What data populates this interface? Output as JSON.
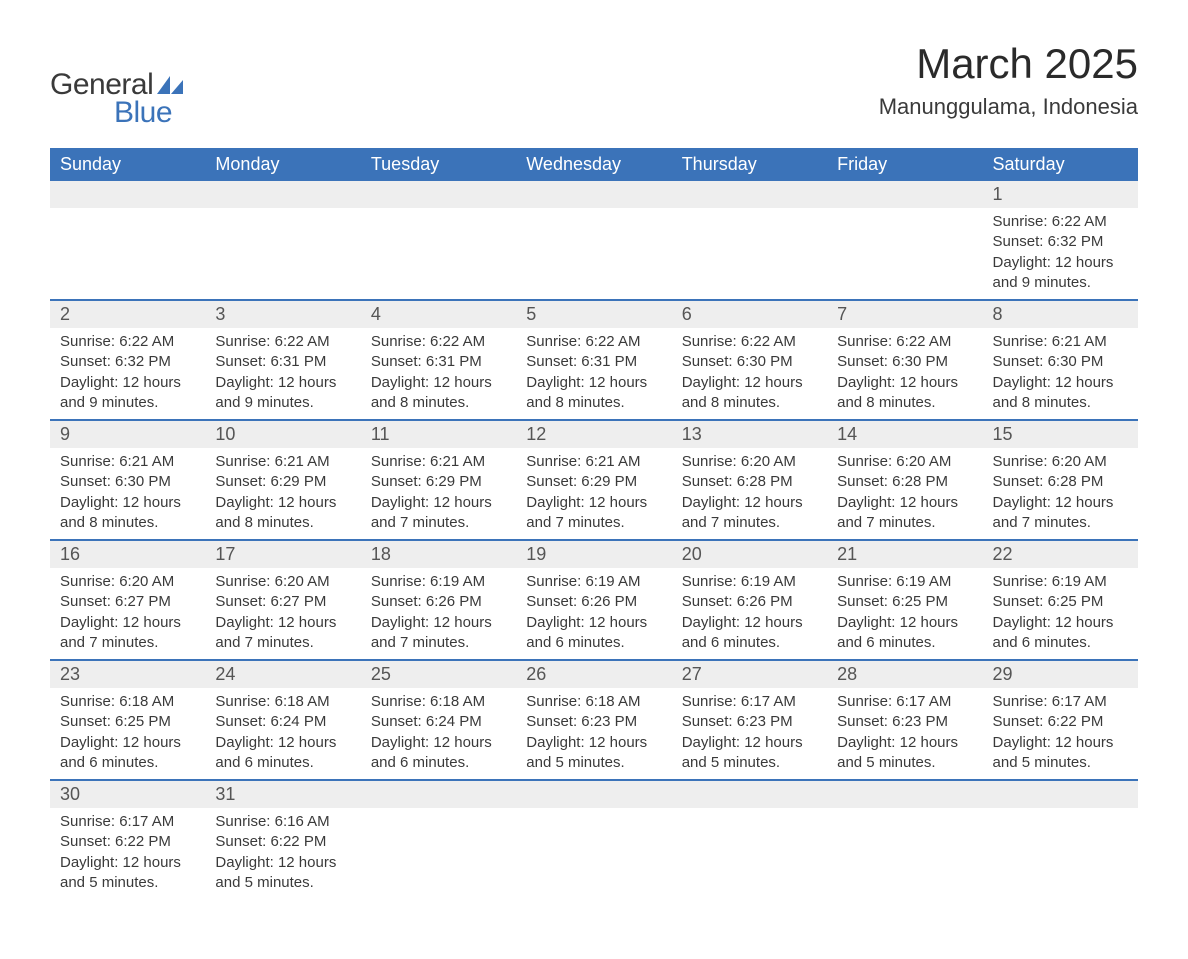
{
  "logo": {
    "text1": "General",
    "text2": "Blue",
    "shape_color": "#3b73b9"
  },
  "title": "March 2025",
  "location": "Manunggulama, Indonesia",
  "colors": {
    "header_bg": "#3b73b9",
    "header_text": "#ffffff",
    "daynum_bg": "#eeeeee",
    "row_divider": "#3b73b9",
    "body_text": "#3a3a3a",
    "page_bg": "#ffffff"
  },
  "typography": {
    "title_fontsize_pt": 32,
    "location_fontsize_pt": 17,
    "weekday_fontsize_pt": 14,
    "daynum_fontsize_pt": 14,
    "detail_fontsize_pt": 11
  },
  "calendar": {
    "weekdays": [
      "Sunday",
      "Monday",
      "Tuesday",
      "Wednesday",
      "Thursday",
      "Friday",
      "Saturday"
    ],
    "first_weekday_index": 6,
    "num_days": 31,
    "days": {
      "1": {
        "sunrise": "6:22 AM",
        "sunset": "6:32 PM",
        "daylight": "12 hours and 9 minutes."
      },
      "2": {
        "sunrise": "6:22 AM",
        "sunset": "6:32 PM",
        "daylight": "12 hours and 9 minutes."
      },
      "3": {
        "sunrise": "6:22 AM",
        "sunset": "6:31 PM",
        "daylight": "12 hours and 9 minutes."
      },
      "4": {
        "sunrise": "6:22 AM",
        "sunset": "6:31 PM",
        "daylight": "12 hours and 8 minutes."
      },
      "5": {
        "sunrise": "6:22 AM",
        "sunset": "6:31 PM",
        "daylight": "12 hours and 8 minutes."
      },
      "6": {
        "sunrise": "6:22 AM",
        "sunset": "6:30 PM",
        "daylight": "12 hours and 8 minutes."
      },
      "7": {
        "sunrise": "6:22 AM",
        "sunset": "6:30 PM",
        "daylight": "12 hours and 8 minutes."
      },
      "8": {
        "sunrise": "6:21 AM",
        "sunset": "6:30 PM",
        "daylight": "12 hours and 8 minutes."
      },
      "9": {
        "sunrise": "6:21 AM",
        "sunset": "6:30 PM",
        "daylight": "12 hours and 8 minutes."
      },
      "10": {
        "sunrise": "6:21 AM",
        "sunset": "6:29 PM",
        "daylight": "12 hours and 8 minutes."
      },
      "11": {
        "sunrise": "6:21 AM",
        "sunset": "6:29 PM",
        "daylight": "12 hours and 7 minutes."
      },
      "12": {
        "sunrise": "6:21 AM",
        "sunset": "6:29 PM",
        "daylight": "12 hours and 7 minutes."
      },
      "13": {
        "sunrise": "6:20 AM",
        "sunset": "6:28 PM",
        "daylight": "12 hours and 7 minutes."
      },
      "14": {
        "sunrise": "6:20 AM",
        "sunset": "6:28 PM",
        "daylight": "12 hours and 7 minutes."
      },
      "15": {
        "sunrise": "6:20 AM",
        "sunset": "6:28 PM",
        "daylight": "12 hours and 7 minutes."
      },
      "16": {
        "sunrise": "6:20 AM",
        "sunset": "6:27 PM",
        "daylight": "12 hours and 7 minutes."
      },
      "17": {
        "sunrise": "6:20 AM",
        "sunset": "6:27 PM",
        "daylight": "12 hours and 7 minutes."
      },
      "18": {
        "sunrise": "6:19 AM",
        "sunset": "6:26 PM",
        "daylight": "12 hours and 7 minutes."
      },
      "19": {
        "sunrise": "6:19 AM",
        "sunset": "6:26 PM",
        "daylight": "12 hours and 6 minutes."
      },
      "20": {
        "sunrise": "6:19 AM",
        "sunset": "6:26 PM",
        "daylight": "12 hours and 6 minutes."
      },
      "21": {
        "sunrise": "6:19 AM",
        "sunset": "6:25 PM",
        "daylight": "12 hours and 6 minutes."
      },
      "22": {
        "sunrise": "6:19 AM",
        "sunset": "6:25 PM",
        "daylight": "12 hours and 6 minutes."
      },
      "23": {
        "sunrise": "6:18 AM",
        "sunset": "6:25 PM",
        "daylight": "12 hours and 6 minutes."
      },
      "24": {
        "sunrise": "6:18 AM",
        "sunset": "6:24 PM",
        "daylight": "12 hours and 6 minutes."
      },
      "25": {
        "sunrise": "6:18 AM",
        "sunset": "6:24 PM",
        "daylight": "12 hours and 6 minutes."
      },
      "26": {
        "sunrise": "6:18 AM",
        "sunset": "6:23 PM",
        "daylight": "12 hours and 5 minutes."
      },
      "27": {
        "sunrise": "6:17 AM",
        "sunset": "6:23 PM",
        "daylight": "12 hours and 5 minutes."
      },
      "28": {
        "sunrise": "6:17 AM",
        "sunset": "6:23 PM",
        "daylight": "12 hours and 5 minutes."
      },
      "29": {
        "sunrise": "6:17 AM",
        "sunset": "6:22 PM",
        "daylight": "12 hours and 5 minutes."
      },
      "30": {
        "sunrise": "6:17 AM",
        "sunset": "6:22 PM",
        "daylight": "12 hours and 5 minutes."
      },
      "31": {
        "sunrise": "6:16 AM",
        "sunset": "6:22 PM",
        "daylight": "12 hours and 5 minutes."
      }
    },
    "labels": {
      "sunrise": "Sunrise: ",
      "sunset": "Sunset: ",
      "daylight": "Daylight: "
    }
  }
}
